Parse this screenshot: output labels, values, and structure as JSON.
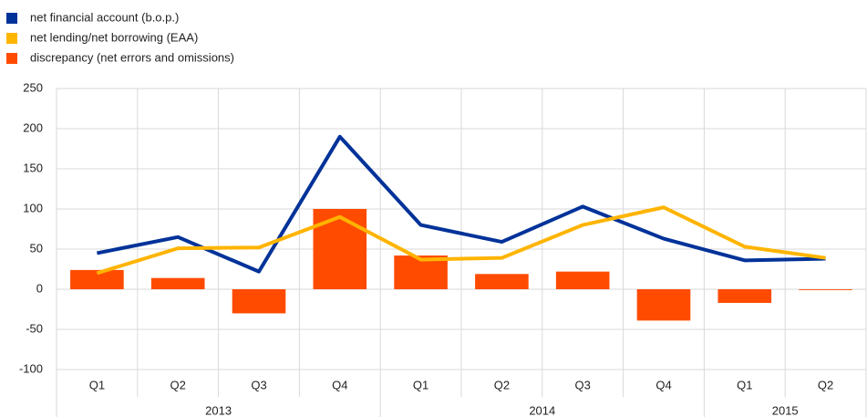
{
  "chart_data": {
    "type": "bar",
    "categories": [
      "Q1",
      "Q2",
      "Q3",
      "Q4",
      "Q1",
      "Q2",
      "Q3",
      "Q4",
      "Q1",
      "Q2"
    ],
    "years": [
      "2013",
      "2013",
      "2013",
      "2013",
      "2014",
      "2014",
      "2014",
      "2014",
      "2015",
      "2015"
    ],
    "series": [
      {
        "name": "net financial account (b.o.p.)",
        "type": "line",
        "color": "#003299",
        "values": [
          45,
          65,
          22,
          190,
          80,
          59,
          103,
          63,
          36,
          38
        ]
      },
      {
        "name": "net lending/net borrowing (EAA)",
        "type": "line",
        "color": "#ffb400",
        "values": [
          20,
          51,
          52,
          90,
          37,
          39,
          80,
          102,
          53,
          39
        ]
      },
      {
        "name": "discrepancy (net errors and omissions)",
        "type": "bar",
        "color": "#ff4b00",
        "values": [
          24,
          14,
          -30,
          100,
          42,
          19,
          22,
          -39,
          -17,
          -1
        ]
      }
    ],
    "ylim": [
      -100,
      250
    ],
    "yticks": [
      -100,
      -50,
      0,
      50,
      100,
      150,
      200,
      250
    ],
    "grid": true,
    "legend": "top-left"
  }
}
